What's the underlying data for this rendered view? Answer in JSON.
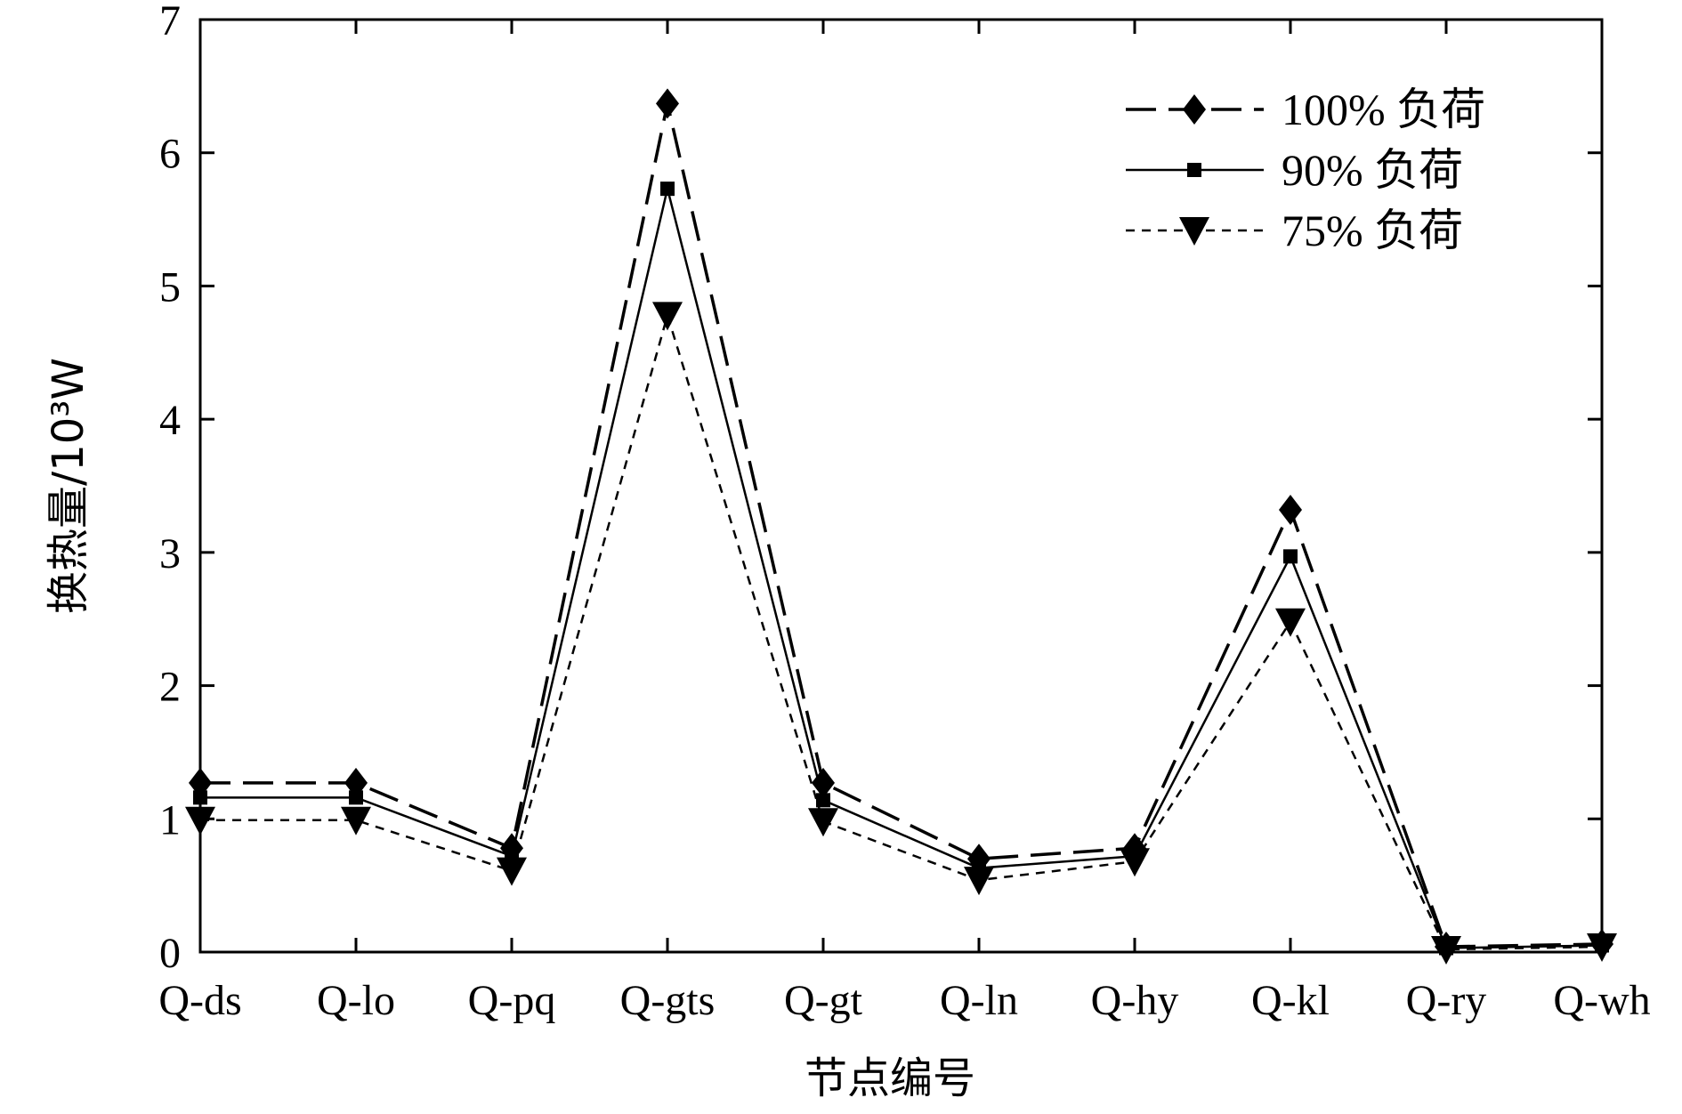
{
  "chart_data": {
    "type": "line",
    "xlabel": "节点编号",
    "ylabel": "换热量/10³W",
    "categories": [
      "Q-ds",
      "Q-lo",
      "Q-pq",
      "Q-gts",
      "Q-gt",
      "Q-ln",
      "Q-hy",
      "Q-kl",
      "Q-ry",
      "Q-wh"
    ],
    "ylim": [
      0,
      7
    ],
    "yticks": [
      "0",
      "1",
      "2",
      "3",
      "4",
      "5",
      "6",
      "7"
    ],
    "legend_position": "top-right",
    "grid": false,
    "series": [
      {
        "name": "100% 负荷",
        "marker": "diamond",
        "line": "long-dash",
        "values": [
          1.27,
          1.27,
          0.78,
          6.37,
          1.27,
          0.7,
          0.78,
          3.32,
          0.04,
          0.06
        ]
      },
      {
        "name": "90% 负荷",
        "marker": "square",
        "line": "solid",
        "values": [
          1.16,
          1.16,
          0.72,
          5.73,
          1.14,
          0.63,
          0.72,
          2.97,
          0.03,
          0.05
        ]
      },
      {
        "name": "75% 负荷",
        "marker": "triangle-down",
        "line": "short-dash",
        "values": [
          0.99,
          0.99,
          0.61,
          4.78,
          0.98,
          0.54,
          0.68,
          2.48,
          0.02,
          0.04
        ]
      }
    ]
  }
}
